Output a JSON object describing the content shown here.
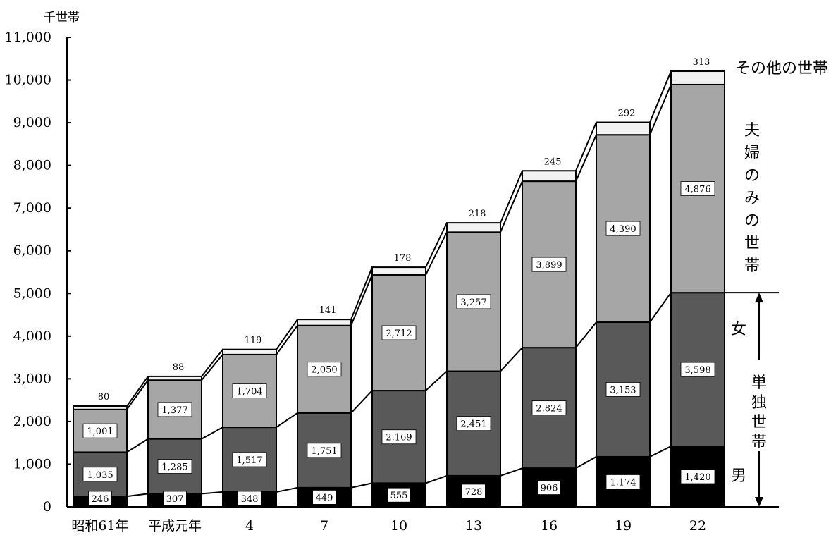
{
  "chart_data": {
    "type": "bar",
    "stacked": true,
    "unit_label": "千世帯",
    "categories": [
      "昭和61年",
      "平成元年",
      "4",
      "7",
      "10",
      "13",
      "16",
      "19",
      "22"
    ],
    "series": [
      {
        "name": "男",
        "color": "#000000",
        "values": [
          246,
          307,
          348,
          449,
          555,
          728,
          906,
          1174,
          1420
        ],
        "labels": [
          "246",
          "307",
          "348",
          "449",
          "555",
          "728",
          "906",
          "1,174",
          "1,420"
        ]
      },
      {
        "name": "女",
        "color": "#595959",
        "values": [
          1035,
          1285,
          1517,
          1751,
          2169,
          2451,
          2824,
          3153,
          3598
        ],
        "labels": [
          "1,035",
          "1,285",
          "1,517",
          "1,751",
          "2,169",
          "2,451",
          "2,824",
          "3,153",
          "3,598"
        ]
      },
      {
        "name": "夫婦のみの世帯",
        "color": "#a6a6a6",
        "values": [
          1001,
          1377,
          1704,
          2050,
          2712,
          3257,
          3899,
          4390,
          4876
        ],
        "labels": [
          "1,001",
          "1,377",
          "1,704",
          "2,050",
          "2,712",
          "3,257",
          "3,899",
          "4,390",
          "4,876"
        ]
      },
      {
        "name": "その他の世帯",
        "color": "#f2f2f2",
        "values": [
          80,
          88,
          119,
          141,
          178,
          218,
          245,
          292,
          313
        ],
        "labels": [
          "80",
          "88",
          "119",
          "141",
          "178",
          "218",
          "245",
          "292",
          "313"
        ]
      }
    ],
    "ylim": [
      0,
      11000
    ],
    "yticks": [
      0,
      1000,
      2000,
      3000,
      4000,
      5000,
      6000,
      7000,
      8000,
      9000,
      10000,
      11000
    ],
    "ytick_labels": [
      "0",
      "1,000",
      "2,000",
      "3,000",
      "4,000",
      "5,000",
      "6,000",
      "7,000",
      "8,000",
      "9,000",
      "10,000",
      "11,000"
    ],
    "bracket_label": "単独世帯",
    "grid": false
  }
}
